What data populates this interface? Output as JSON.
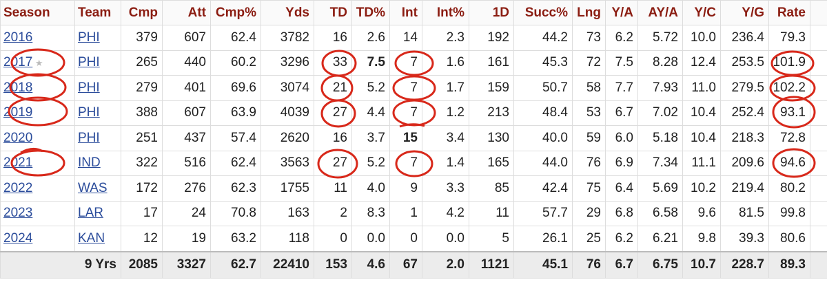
{
  "table": {
    "header": [
      "Season",
      "Team",
      "Cmp",
      "Att",
      "Cmp%",
      "Yds",
      "TD",
      "TD%",
      "Int",
      "Int%",
      "1D",
      "Succ%",
      "Lng",
      "Y/A",
      "AY/A",
      "Y/C",
      "Y/G",
      "Rate"
    ],
    "rows": [
      [
        "2016",
        "PHI",
        "379",
        "607",
        "62.4",
        "3782",
        "16",
        "2.6",
        "14",
        "2.3",
        "192",
        "44.2",
        "73",
        "6.2",
        "5.72",
        "10.0",
        "236.4",
        "79.3"
      ],
      [
        "2017",
        "PHI",
        "265",
        "440",
        "60.2",
        "3296",
        "33",
        "7.5",
        "7",
        "1.6",
        "161",
        "45.3",
        "72",
        "7.5",
        "8.28",
        "12.4",
        "253.5",
        "101.9"
      ],
      [
        "2018",
        "PHI",
        "279",
        "401",
        "69.6",
        "3074",
        "21",
        "5.2",
        "7",
        "1.7",
        "159",
        "50.7",
        "58",
        "7.7",
        "7.93",
        "11.0",
        "279.5",
        "102.2"
      ],
      [
        "2019",
        "PHI",
        "388",
        "607",
        "63.9",
        "4039",
        "27",
        "4.4",
        "7",
        "1.2",
        "213",
        "48.4",
        "53",
        "6.7",
        "7.02",
        "10.4",
        "252.4",
        "93.1"
      ],
      [
        "2020",
        "PHI",
        "251",
        "437",
        "57.4",
        "2620",
        "16",
        "3.7",
        "15",
        "3.4",
        "130",
        "40.0",
        "59",
        "6.0",
        "5.18",
        "10.4",
        "218.3",
        "72.8"
      ],
      [
        "2021",
        "IND",
        "322",
        "516",
        "62.4",
        "3563",
        "27",
        "5.2",
        "7",
        "1.4",
        "165",
        "44.0",
        "76",
        "6.9",
        "7.34",
        "11.1",
        "209.6",
        "94.6"
      ],
      [
        "2022",
        "WAS",
        "172",
        "276",
        "62.3",
        "1755",
        "11",
        "4.0",
        "9",
        "3.3",
        "85",
        "42.4",
        "75",
        "6.4",
        "5.69",
        "10.2",
        "219.4",
        "80.2"
      ],
      [
        "2023",
        "LAR",
        "17",
        "24",
        "70.8",
        "163",
        "2",
        "8.3",
        "1",
        "4.2",
        "11",
        "57.7",
        "29",
        "6.8",
        "6.58",
        "9.6",
        "81.5",
        "99.8"
      ],
      [
        "2024",
        "KAN",
        "12",
        "19",
        "63.2",
        "118",
        "0",
        "0.0",
        "0",
        "0.0",
        "5",
        "26.1",
        "25",
        "6.2",
        "6.21",
        "9.8",
        "39.3",
        "80.6"
      ]
    ],
    "total": [
      "9 Yrs",
      "2085",
      "3327",
      "62.7",
      "22410",
      "153",
      "4.6",
      "67",
      "2.0",
      "1121",
      "45.1",
      "76",
      "6.7",
      "6.75",
      "10.7",
      "228.7",
      "89.3"
    ]
  }
}
